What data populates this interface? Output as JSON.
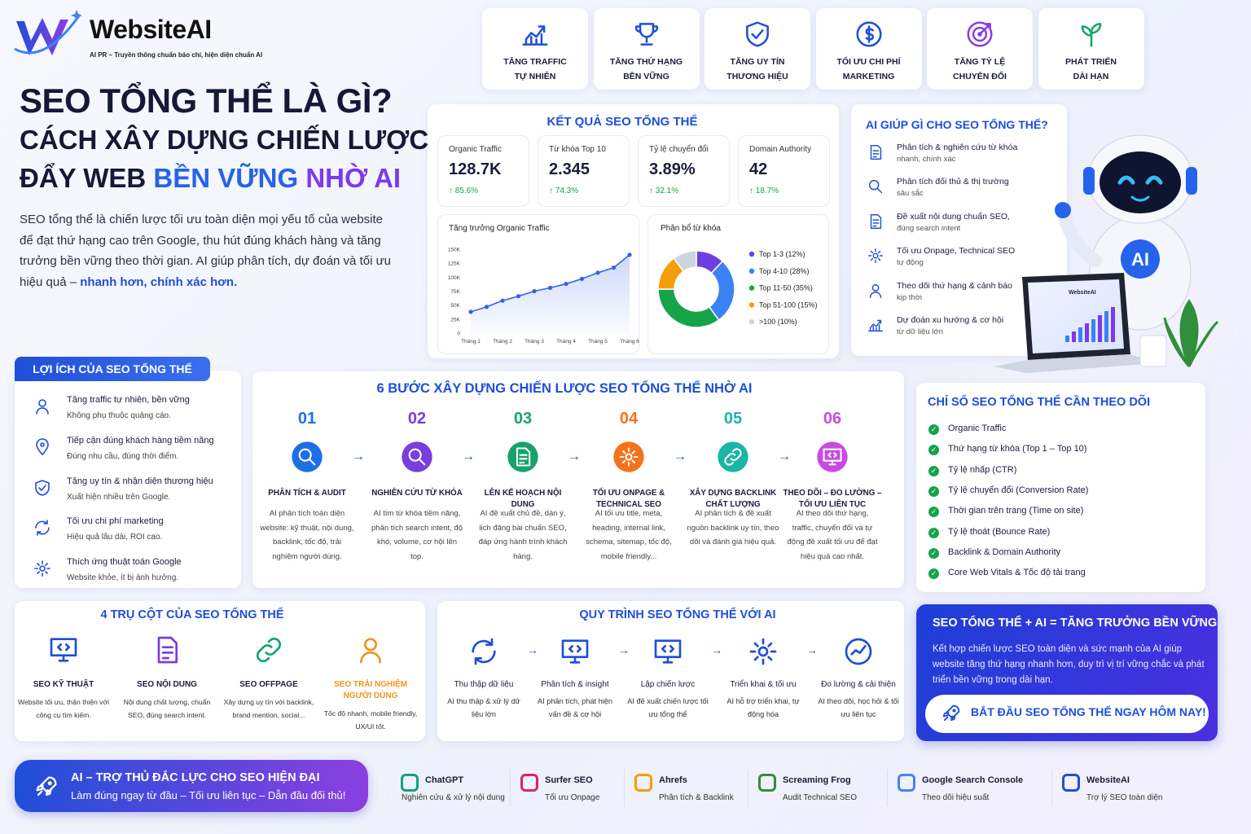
{
  "brand": {
    "name": "WebsiteAI",
    "tagline": "AI PR – Truyền thông chuẩn báo chí, hiện diện chuẩn AI"
  },
  "hero": {
    "title_1": "SEO TỔNG THỂ LÀ GÌ?",
    "title_2": "CÁCH XÂY DỰNG CHIẾN LƯỢC",
    "title_3a": "ĐẨY WEB",
    "title_3b": "BỀN VỮNG",
    "title_3c": "NHỜ AI",
    "intro": "SEO tổng thể là chiến lược tối ưu toàn diện mọi yếu tố của website để đạt thứ hạng cao trên Google, thu hút đúng khách hàng và tăng trưởng bền vững theo thời gian. AI giúp phân tích, dự đoán và tối ưu hiệu quả –",
    "intro_highlight": "nhanh hơn, chính xác hơn."
  },
  "top_benefits": [
    {
      "line1": "TĂNG TRAFFIC",
      "line2": "TỰ NHIÊN"
    },
    {
      "line1": "TĂNG THỨ HẠNG",
      "line2": "BỀN VỮNG"
    },
    {
      "line1": "TĂNG UY TÍN",
      "line2": "THƯƠNG HIỆU"
    },
    {
      "line1": "TỐI ƯU CHI PHÍ",
      "line2": "MARKETING"
    },
    {
      "line1": "TĂNG TỶ LỆ",
      "line2": "CHUYỂN ĐỔI"
    },
    {
      "line1": "PHÁT TRIỂN",
      "line2": "DÀI HẠN"
    }
  ],
  "results": {
    "title": "KẾT QUẢ SEO TỔNG THỂ",
    "metrics": [
      {
        "label": "Organic Traffic",
        "value": "128.7K",
        "change": "↑ 85.6%"
      },
      {
        "label": "Từ khóa Top 10",
        "value": "2.345",
        "change": "↑ 74.3%"
      },
      {
        "label": "Tỷ lệ chuyển đổi",
        "value": "3.89%",
        "change": "↑ 32.1%"
      },
      {
        "label": "Domain Authority",
        "value": "42",
        "change": "↑ 18.7%"
      }
    ]
  },
  "chart_data": [
    {
      "type": "line",
      "title": "Tăng trưởng Organic Traffic",
      "categories": [
        "Tháng 1",
        null,
        "Tháng 2",
        null,
        "Tháng 3",
        null,
        "Tháng 4",
        null,
        "Tháng 5",
        null,
        "Tháng 6"
      ],
      "values": [
        38000,
        47000,
        58000,
        66000,
        75000,
        81000,
        88000,
        97000,
        108000,
        117000,
        140000
      ],
      "color": "#3563e9",
      "ylim": [
        0,
        150000
      ],
      "yticks": [
        0,
        {
          "value": 25000,
          "label": "25K"
        },
        {
          "value": 50000,
          "label": "50K"
        },
        {
          "value": 75000,
          "label": "75K"
        },
        {
          "value": 100000,
          "label": "100K"
        },
        {
          "value": 125000,
          "label": "125K"
        },
        {
          "value": 150000,
          "label": "150K"
        }
      ]
    },
    {
      "type": "donut",
      "title": "Phân bổ từ khóa",
      "categories": [
        "Top 1-3 (12%)",
        "Top 4-10 (28%)",
        "Top 11-50 (35%)",
        "Top 51-100 (15%)",
        ">100 (10%)"
      ],
      "values": [
        12,
        28,
        35,
        15,
        10
      ],
      "colors": [
        "#6d3fe0",
        "#3b82f6",
        "#16a34a",
        "#f59e0b",
        "#cbd5e1"
      ]
    }
  ],
  "ai_help": {
    "title": "AI GIÚP GÌ CHO SEO TỔNG THỂ?",
    "items": [
      {
        "title": "Phân tích & nghiên cứu từ khóa",
        "desc": "nhanh, chính xác"
      },
      {
        "title": "Phân tích đối thủ & thị trường",
        "desc": "sâu sắc"
      },
      {
        "title": "Đề xuất nội dung chuẩn SEO,",
        "desc": "đúng search intent"
      },
      {
        "title": "Tối ưu Onpage, Technical SEO",
        "desc": "tự động"
      },
      {
        "title": "Theo dõi thứ hạng & cảnh báo",
        "desc": "kịp thời"
      },
      {
        "title": "Dự đoán xu hướng & cơ hội",
        "desc": "từ dữ liệu lớn"
      }
    ]
  },
  "robot": {
    "badge": "AI",
    "laptop_label": "WebsiteAI"
  },
  "benefits": {
    "title": "LỢI ÍCH CỦA SEO TỔNG THỂ",
    "items": [
      {
        "title": "Tăng traffic tự nhiên, bền vững",
        "desc": "Không phụ thuộc quảng cáo."
      },
      {
        "title": "Tiếp cận đúng khách hàng tiềm năng",
        "desc": "Đúng nhu cầu, đúng thời điểm."
      },
      {
        "title": "Tăng uy tín & nhận diện thương hiệu",
        "desc": "Xuất hiện nhiều trên Google."
      },
      {
        "title": "Tối ưu chi phí marketing",
        "desc": "Hiệu quả lâu dài, ROI cao."
      },
      {
        "title": "Thích ứng thuật toán Google",
        "desc": "Website khỏe, ít bị ảnh hưởng."
      }
    ]
  },
  "steps": {
    "title": "6 BƯỚC XÂY DỰNG CHIẾN LƯỢC SEO TỔNG THỂ NHỜ AI",
    "items": [
      {
        "number": "01",
        "title": "PHÂN TÍCH & AUDIT",
        "desc": "AI phân tích toàn diện website: kỹ thuật, nội dung, backlink, tốc độ, trải nghiệm người dùng."
      },
      {
        "number": "02",
        "title": "NGHIÊN CỨU TỪ KHÓA",
        "desc": "AI tìm từ khóa tiềm năng, phân tích search intent, độ khó, volume, cơ hội lên top."
      },
      {
        "number": "03",
        "title": "LÊN KẾ HOẠCH NỘI DUNG",
        "desc": "AI đề xuất chủ đề, dàn ý, lịch đăng bài chuẩn SEO, đáp ứng hành trình khách hàng."
      },
      {
        "number": "04",
        "title": "TỐI ƯU ONPAGE & TECHNICAL SEO",
        "desc": "AI tối ưu title, meta, heading, internal link, schema, sitemap, tốc độ, mobile friendly..."
      },
      {
        "number": "05",
        "title": "XÂY DỰNG BACKLINK CHẤT LƯỢNG",
        "desc": "AI phân tích & đề xuất nguồn backlink uy tín, theo dõi và đánh giá hiệu quả."
      },
      {
        "number": "06",
        "title": "THEO DÕI – ĐO LƯỜNG – TỐI ƯU LIÊN TỤC",
        "desc": "AI theo dõi thứ hạng, traffic, chuyển đổi và tự động đề xuất tối ưu để đạt hiệu quả cao nhất."
      }
    ]
  },
  "tracking": {
    "title": "CHỈ SỐ SEO TỔNG THỂ CẦN THEO DÕI",
    "items": [
      "Organic Traffic",
      "Thứ hạng từ khóa (Top 1 – Top 10)",
      "Tỷ lệ nhấp (CTR)",
      "Tỷ lệ chuyển đổi (Conversion Rate)",
      "Thời gian trên trang (Time on site)",
      "Tỷ lệ thoát (Bounce Rate)",
      "Backlink & Domain Authority",
      "Core Web Vitals & Tốc độ tải trang"
    ]
  },
  "pillars": {
    "title": "4 TRỤ CỘT CỦA SEO TỔNG THỂ",
    "items": [
      {
        "title": "SEO KỸ THUẬT",
        "desc": "Website tối ưu, thân thiện với công cụ tìm kiếm."
      },
      {
        "title": "SEO NỘI DUNG",
        "desc": "Nội dung chất lượng, chuẩn SEO, đúng search intent."
      },
      {
        "title": "SEO OFFPAGE",
        "desc": "Xây dựng uy tín với backlink, brand mention, social..."
      },
      {
        "title": "SEO TRẢI NGHIỆM NGƯỜI DÙNG",
        "desc": "Tốc độ nhanh, mobile friendly, UX/UI tốt."
      }
    ]
  },
  "process": {
    "title": "QUY TRÌNH SEO TỔNG THỂ VỚI AI",
    "items": [
      {
        "title": "Thu thập dữ liệu",
        "desc": "AI thu thập & xử lý dữ liệu lớn"
      },
      {
        "title": "Phân tích & insight",
        "desc": "AI phân tích, phát hiện vấn đề & cơ hội"
      },
      {
        "title": "Lập chiến lược",
        "desc": "AI đề xuất chiến lược tối ưu tổng thể"
      },
      {
        "title": "Triển khai & tối ưu",
        "desc": "AI hỗ trợ triển khai, tự động hóa"
      },
      {
        "title": "Đo lường & cải thiện",
        "desc": "AI theo dõi, học hỏi & tối ưu liên tục"
      }
    ]
  },
  "cta": {
    "title": "SEO TỔNG THỂ + AI = TĂNG TRƯỞNG BỀN VỮNG",
    "text": "Kết hợp chiến lược SEO toàn diện và sức mạnh của AI giúp website tăng thứ hạng nhanh hơn, duy trì vị trí vững chắc và phát triển bền vững trong dài hạn.",
    "button": "BẮT ĐẦU SEO TỔNG THỂ NGAY HÔM NAY!"
  },
  "banner": {
    "title": "AI – TRỢ THỦ ĐẮC LỰC CHO SEO HIỆN ĐẠI",
    "subtitle": "Làm đúng ngay từ đầu – Tối ưu liên tục – Dẫn đầu đối thủ!"
  },
  "tools": [
    {
      "name": "ChatGPT",
      "desc": "Nghiên cứu & xử lý nội dung"
    },
    {
      "name": "Surfer SEO",
      "desc": "Tối ưu Onpage"
    },
    {
      "name": "Ahrefs",
      "desc": "Phân tích & Backlink"
    },
    {
      "name": "Screaming Frog",
      "desc": "Audit Technical SEO"
    },
    {
      "name": "Google Search Console",
      "desc": "Theo dõi hiệu suất"
    },
    {
      "name": "WebsiteAI",
      "desc": "Trợ lý SEO toàn diện"
    }
  ]
}
